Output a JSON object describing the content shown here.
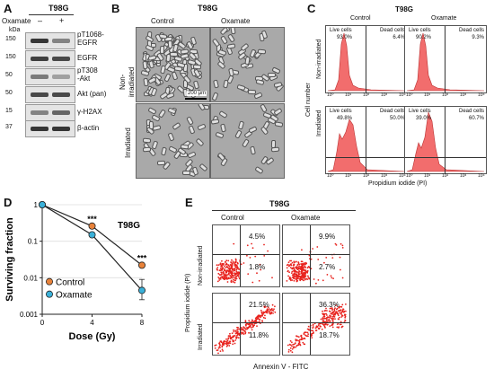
{
  "panel_a": {
    "letter": "A",
    "cell_line": "T98G",
    "treatment_label": "Oxamate",
    "lanes": [
      "–",
      "+"
    ],
    "kda_label": "kDa",
    "rows": [
      {
        "kda": "150",
        "label": "pT1068-\nEGFR",
        "bands": [
          0.9,
          0.5
        ]
      },
      {
        "kda": "150",
        "label": "EGFR",
        "bands": [
          0.85,
          0.8
        ]
      },
      {
        "kda": "50",
        "label": "pT308\n-Akt",
        "bands": [
          0.55,
          0.35
        ]
      },
      {
        "kda": "50",
        "label": "Akt (pan)",
        "bands": [
          0.8,
          0.8
        ]
      },
      {
        "kda": "15",
        "label": "γ-H2AX",
        "bands": [
          0.5,
          0.65
        ]
      },
      {
        "kda": "37",
        "label": "β-actin",
        "bands": [
          0.9,
          0.9
        ]
      }
    ]
  },
  "panel_b": {
    "letter": "B",
    "cell_line": "T98G",
    "columns": [
      "Control",
      "Oxamate"
    ],
    "rows": [
      "Non-\nirradiated",
      "Irradiated"
    ],
    "scale_bar": "200 μm"
  },
  "panel_c": {
    "letter": "C",
    "cell_line": "T98G",
    "columns": [
      "Control",
      "Oxamate"
    ],
    "rows": [
      "Non-irradiated",
      "Irradiated"
    ],
    "ylabel": "Cell number",
    "xlabel": "Propidium iodide (PI)",
    "live_label": "Live cells",
    "dead_label": "Dead cells",
    "xticks": [
      "10⁰",
      "10¹",
      "10²",
      "10³",
      "10⁴"
    ],
    "panels": [
      {
        "live": "93.0%",
        "dead": "6.4%"
      },
      {
        "live": "90.2%",
        "dead": "9.3%"
      },
      {
        "live": "49.8%",
        "dead": "50.0%"
      },
      {
        "live": "39.0%",
        "dead": "60.7%"
      }
    ]
  },
  "panel_d": {
    "letter": "D",
    "cell_line": "T98G",
    "sig_label": "***"
  },
  "panel_e": {
    "letter": "E",
    "cell_line": "T98G",
    "columns": [
      "Control",
      "Oxamate"
    ],
    "rows": [
      "Non-irradiated",
      "Irradiated"
    ],
    "ylabel": "Propidium iodide (PI)",
    "xlabel": "Annexin V - FITC",
    "panels": [
      {
        "upper_right": "4.5%",
        "lower_right": "1.8%"
      },
      {
        "upper_right": "9.9%",
        "lower_right": "2.7%"
      },
      {
        "upper_right": "21.5%",
        "lower_right": "11.8%"
      },
      {
        "upper_right": "36.3%",
        "lower_right": "18.7%"
      }
    ]
  },
  "colors": {
    "control": "#e8823a",
    "oxamate": "#3ab0d8",
    "histogram": "#f26d6d",
    "dots": "#e8231e"
  },
  "chart_data": {
    "type": "line",
    "title": "T98G",
    "xlabel": "Dose (Gy)",
    "ylabel": "Surviving fraction",
    "yscale": "log",
    "x": [
      0,
      4,
      8
    ],
    "xticks": [
      "0",
      "4",
      "8"
    ],
    "yticks": [
      "0.001",
      "0.01",
      "0.1",
      "1"
    ],
    "ylim": [
      0.001,
      1
    ],
    "xlim": [
      0,
      8
    ],
    "series": [
      {
        "name": "Control",
        "values": [
          1,
          0.26,
          0.022
        ]
      },
      {
        "name": "Oxamate",
        "values": [
          1,
          0.15,
          0.0045
        ]
      }
    ],
    "legend": "bottom-left"
  }
}
